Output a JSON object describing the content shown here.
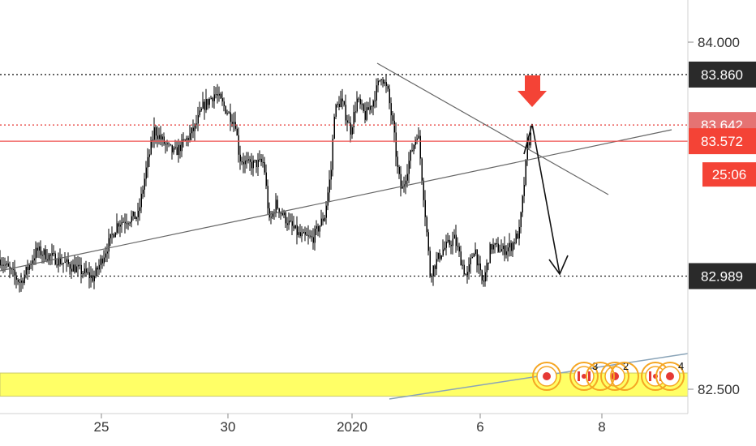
{
  "chart_data": {
    "type": "candlestick",
    "y_axis": {
      "ticks": [
        "84.000",
        "82.500"
      ],
      "ylim": [
        82.35,
        84.3
      ]
    },
    "x_axis": {
      "ticks": [
        "25",
        "30",
        "2020",
        "6",
        "8"
      ]
    },
    "price_lines": [
      {
        "label": "83.860",
        "value": 83.86,
        "style": "dotted",
        "line_color": "#222222",
        "badge_color": "#2a2a2a"
      },
      {
        "label": "83.642",
        "value": 83.642,
        "style": "dotted",
        "line_color": "#e53935",
        "badge_color": "#e57373"
      },
      {
        "label": "83.572",
        "value": 83.572,
        "style": "solid",
        "line_color": "#ef5350",
        "badge_color": "#f44336"
      },
      {
        "label": "82.989",
        "value": 82.989,
        "style": "dotted",
        "line_color": "#222222",
        "badge_color": "#2a2a2a"
      }
    ],
    "countdown": {
      "label": "25:06",
      "badge_color": "#f44336"
    },
    "highlight_band": {
      "from": 82.47,
      "to": 82.57,
      "color": "#ffff66"
    },
    "event_counts": [
      "3",
      "2",
      "4"
    ],
    "down_arrow_color": "#f44336"
  }
}
